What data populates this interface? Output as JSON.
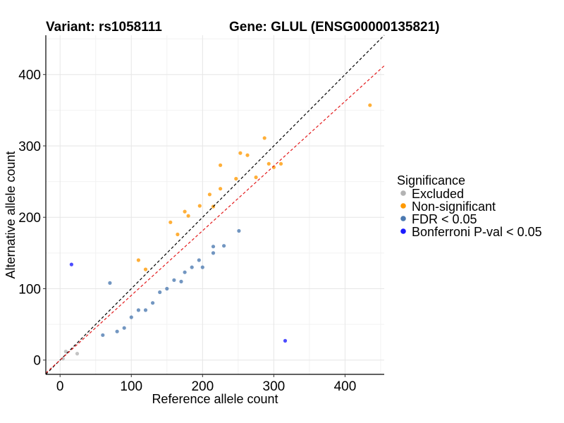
{
  "title_left": "Variant: rs1058111",
  "title_right": "Gene: GLUL (ENSG00000135821)",
  "chart_data": {
    "type": "scatter",
    "xlabel": "Reference allele count",
    "ylabel": "Alternative allele count",
    "xlim": [
      -20,
      455
    ],
    "ylim": [
      -20,
      455
    ],
    "xticks": [
      0,
      100,
      200,
      300,
      400
    ],
    "yticks": [
      0,
      100,
      200,
      300,
      400
    ],
    "grid": true,
    "legend": {
      "title": "Significance",
      "placement": "right",
      "entries": [
        {
          "label": "Excluded",
          "color": "#b3b3b3"
        },
        {
          "label": "Non-significant",
          "color": "#ff9900"
        },
        {
          "label": "FDR < 0.05",
          "color": "#4a78b0"
        },
        {
          "label": "Bonferroni P-val < 0.05",
          "color": "#1a1aff"
        }
      ]
    },
    "reference_lines": [
      {
        "style": "dashed",
        "color": "#000000",
        "slope": 1.0,
        "intercept": 0
      },
      {
        "style": "dashed",
        "color": "#e31a1c",
        "slope": 0.906,
        "intercept": 0
      }
    ],
    "series": [
      {
        "name": "Bonferroni P-val < 0.05",
        "color": "#1a1aff",
        "x": [
          16,
          316
        ],
        "y": [
          134,
          27
        ]
      },
      {
        "name": "Non-significant",
        "color": "#ff9900",
        "x": [
          435,
          287,
          263,
          253,
          310,
          225,
          293,
          300,
          275,
          247,
          210,
          225,
          215,
          175,
          180,
          196,
          155,
          165,
          110,
          120
        ],
        "y": [
          357,
          311,
          287,
          290,
          275,
          273,
          275,
          270,
          256,
          254,
          232,
          240,
          215,
          208,
          202,
          216,
          193,
          176,
          140,
          127
        ]
      },
      {
        "name": "FDR < 0.05",
        "color": "#4a78b0",
        "x": [
          251,
          215,
          195,
          215,
          175,
          160,
          140,
          120,
          80,
          60,
          200,
          110,
          130,
          90,
          70,
          230,
          185,
          170,
          150,
          100
        ],
        "y": [
          181,
          159,
          140,
          150,
          123,
          112,
          95,
          70,
          40,
          35,
          130,
          70,
          80,
          45,
          108,
          160,
          130,
          110,
          100,
          60
        ]
      },
      {
        "name": "Excluded",
        "color": "#b3b3b3",
        "x": [
          4,
          24,
          8
        ],
        "y": [
          2,
          9,
          12
        ]
      }
    ]
  }
}
